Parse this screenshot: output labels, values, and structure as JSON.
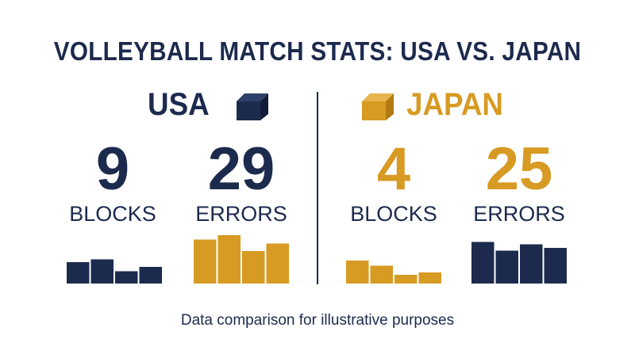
{
  "title": "VOLLEYBALL MATCH STATS: USA VS. JAPAN",
  "colors": {
    "navy": "#1c2a4d",
    "gold": "#d79a22"
  },
  "teams": [
    {
      "name": "USA",
      "icon": "cube-icon",
      "stats": [
        {
          "value": "9",
          "label": "BLOCKS",
          "bars": [
            0.42,
            0.48,
            0.24,
            0.33
          ],
          "bar_color": "#1c2a4d"
        },
        {
          "value": "29",
          "label": "ERRORS",
          "bars": [
            0.87,
            0.95,
            0.64,
            0.79
          ],
          "bar_color": "#d79a22"
        }
      ]
    },
    {
      "name": "JAPAN",
      "icon": "cube-icon",
      "stats": [
        {
          "value": "4",
          "label": "BLOCKS",
          "bars": [
            0.45,
            0.35,
            0.17,
            0.22
          ],
          "bar_color": "#d79a22"
        },
        {
          "value": "25",
          "label": "ERRORS",
          "bars": [
            0.82,
            0.65,
            0.77,
            0.7
          ],
          "bar_color": "#1c2a4d"
        }
      ]
    }
  ],
  "footnote": "Data comparison for illustrative purposes"
}
